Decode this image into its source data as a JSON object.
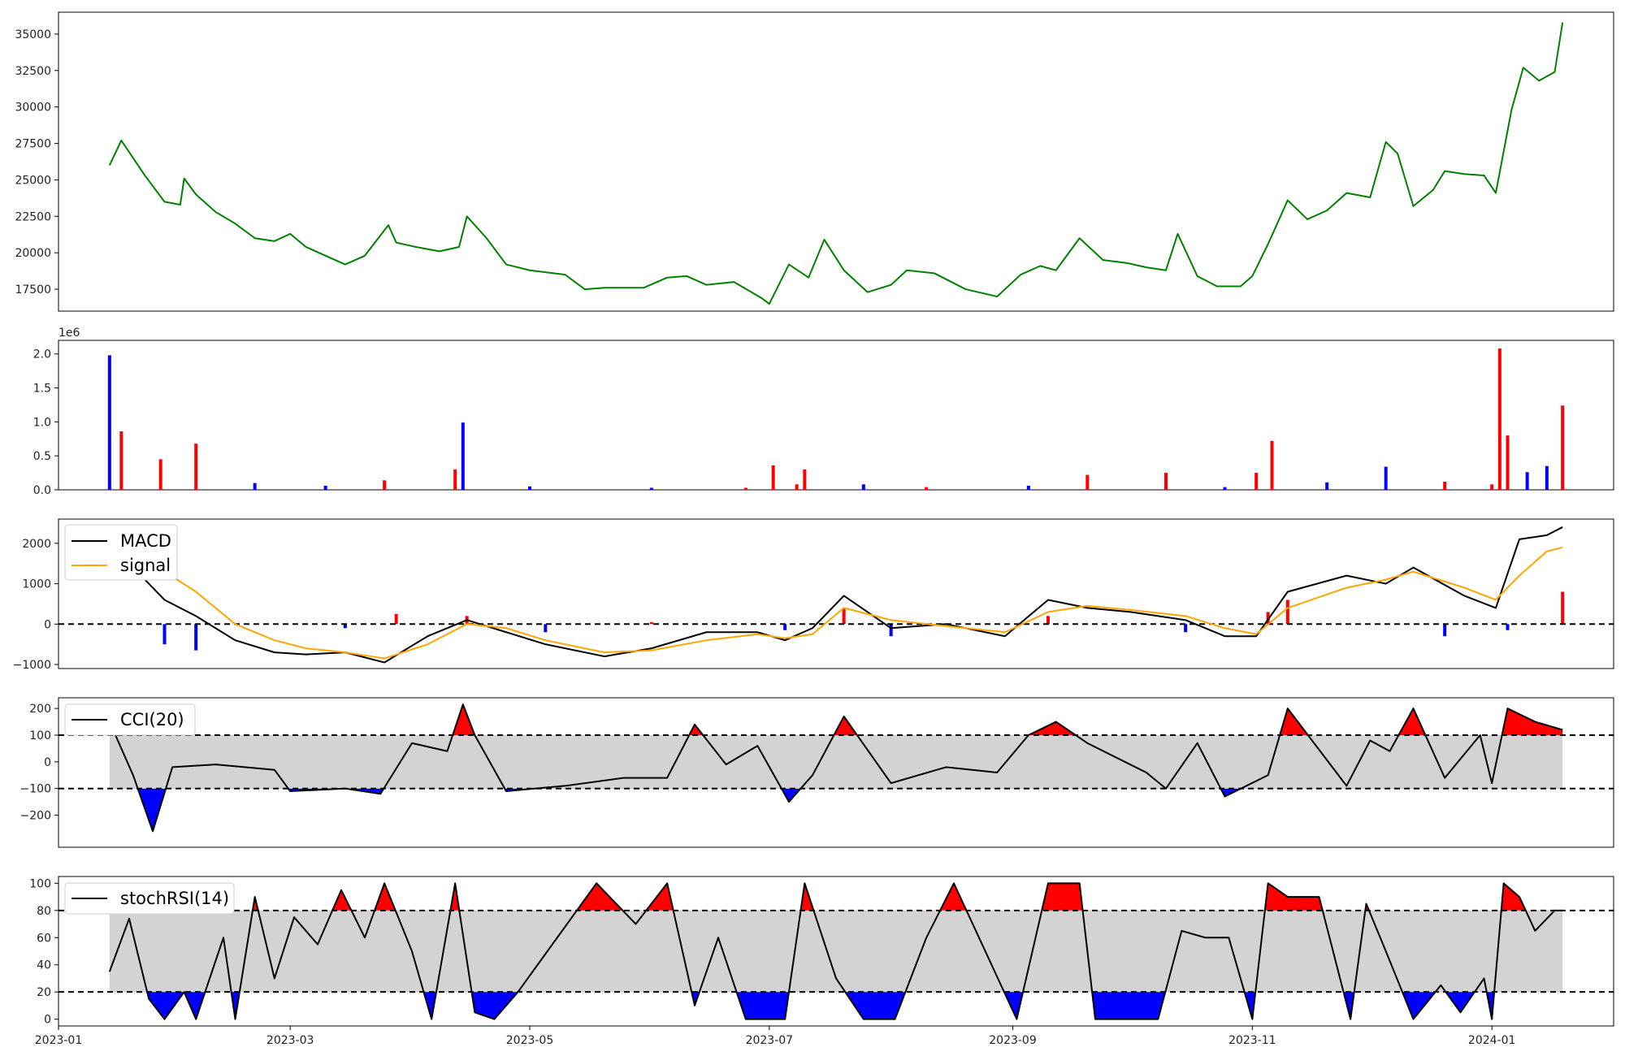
{
  "chart_data": [
    {
      "type": "line",
      "panel": "price",
      "x": [
        "2023-01-14",
        "2023-01-17",
        "2023-01-23",
        "2023-01-28",
        "2023-02-01",
        "2023-02-02",
        "2023-02-05",
        "2023-02-10",
        "2023-02-15",
        "2023-02-20",
        "2023-02-25",
        "2023-03-01",
        "2023-03-05",
        "2023-03-10",
        "2023-03-15",
        "2023-03-20",
        "2023-03-26",
        "2023-03-28",
        "2023-04-02",
        "2023-04-08",
        "2023-04-13",
        "2023-04-15",
        "2023-04-20",
        "2023-04-25",
        "2023-05-01",
        "2023-05-10",
        "2023-05-15",
        "2023-05-20",
        "2023-05-30",
        "2023-06-05",
        "2023-06-10",
        "2023-06-15",
        "2023-06-22",
        "2023-06-29",
        "2023-07-01",
        "2023-07-06",
        "2023-07-11",
        "2023-07-15",
        "2023-07-20",
        "2023-07-26",
        "2023-08-01",
        "2023-08-05",
        "2023-08-12",
        "2023-08-20",
        "2023-08-28",
        "2023-09-03",
        "2023-09-08",
        "2023-09-12",
        "2023-09-18",
        "2023-09-24",
        "2023-09-30",
        "2023-10-05",
        "2023-10-10",
        "2023-10-13",
        "2023-10-18",
        "2023-10-23",
        "2023-10-29",
        "2023-11-01",
        "2023-11-05",
        "2023-11-10",
        "2023-11-15",
        "2023-11-20",
        "2023-11-25",
        "2023-12-01",
        "2023-12-05",
        "2023-12-08",
        "2023-12-12",
        "2023-12-17",
        "2023-12-20",
        "2023-12-25",
        "2023-12-30",
        "2024-01-02",
        "2024-01-06",
        "2024-01-09",
        "2024-01-13",
        "2024-01-17",
        "2024-01-19"
      ],
      "values": [
        26000,
        27700,
        25300,
        23500,
        23300,
        25100,
        24000,
        22800,
        22000,
        21000,
        20800,
        21300,
        20400,
        19800,
        19200,
        19800,
        21900,
        20700,
        20400,
        20100,
        20400,
        22500,
        21000,
        19200,
        18800,
        18500,
        17500,
        17600,
        17600,
        18300,
        18400,
        17800,
        18000,
        16900,
        16500,
        19200,
        18300,
        20900,
        18800,
        17300,
        17800,
        18800,
        18600,
        17500,
        17000,
        18500,
        19100,
        18800,
        21000,
        19500,
        19300,
        19000,
        18800,
        21300,
        18400,
        17700,
        17700,
        18400,
        20600,
        23600,
        22300,
        22900,
        24100,
        23800,
        27600,
        26800,
        23200,
        24300,
        25600,
        25400,
        25300,
        24100,
        29800,
        32700,
        31800,
        32400,
        35800
      ],
      "color": "#008000",
      "ylim": [
        16000,
        36500
      ],
      "yticks": [
        "17500",
        "20000",
        "22500",
        "25000",
        "27500",
        "30000",
        "32500",
        "35000"
      ]
    },
    {
      "type": "bar",
      "panel": "volume",
      "offset_label": "1e6",
      "x": [
        "2023-01-14",
        "2023-01-17",
        "2023-01-27",
        "2023-02-05",
        "2023-02-20",
        "2023-03-10",
        "2023-03-25",
        "2023-04-12",
        "2023-04-14",
        "2023-05-01",
        "2023-06-01",
        "2023-06-25",
        "2023-07-02",
        "2023-07-08",
        "2023-07-10",
        "2023-07-25",
        "2023-08-10",
        "2023-09-05",
        "2023-09-20",
        "2023-10-10",
        "2023-10-25",
        "2023-11-02",
        "2023-11-06",
        "2023-11-20",
        "2023-12-05",
        "2023-12-20",
        "2024-01-01",
        "2024-01-03",
        "2024-01-05",
        "2024-01-10",
        "2024-01-15",
        "2024-01-19"
      ],
      "values": [
        1980000,
        860000,
        450000,
        680000,
        100000,
        60000,
        140000,
        300000,
        990000,
        50000,
        30000,
        30000,
        360000,
        80000,
        300000,
        80000,
        40000,
        60000,
        220000,
        250000,
        40000,
        250000,
        720000,
        110000,
        340000,
        120000,
        80000,
        2080000,
        800000,
        260000,
        350000,
        1240000
      ],
      "colors": [
        "#0000ff",
        "#ff0000",
        "#ff0000",
        "#ff0000",
        "#0000ff",
        "#0000ff",
        "#ff0000",
        "#ff0000",
        "#0000ff",
        "#0000ff",
        "#0000ff",
        "#ff0000",
        "#ff0000",
        "#ff0000",
        "#ff0000",
        "#0000ff",
        "#ff0000",
        "#0000ff",
        "#ff0000",
        "#ff0000",
        "#0000ff",
        "#ff0000",
        "#ff0000",
        "#0000ff",
        "#0000ff",
        "#ff0000",
        "#ff0000",
        "#ff0000",
        "#ff0000",
        "#0000ff",
        "#0000ff",
        "#ff0000"
      ],
      "ylim": [
        0,
        2200000
      ],
      "yticks": [
        "0.0",
        "0.5",
        "1.0",
        "1.5",
        "2.0"
      ]
    },
    {
      "type": "line",
      "panel": "macd",
      "series": [
        {
          "name": "MACD",
          "color": "#000000",
          "x": [
            "2023-01-14",
            "2023-01-28",
            "2023-02-05",
            "2023-02-15",
            "2023-02-25",
            "2023-03-05",
            "2023-03-15",
            "2023-03-25",
            "2023-04-05",
            "2023-04-15",
            "2023-04-25",
            "2023-05-05",
            "2023-05-20",
            "2023-06-01",
            "2023-06-15",
            "2023-06-28",
            "2023-07-05",
            "2023-07-12",
            "2023-07-20",
            "2023-08-01",
            "2023-08-15",
            "2023-08-30",
            "2023-09-10",
            "2023-09-20",
            "2023-10-01",
            "2023-10-15",
            "2023-10-25",
            "2023-11-02",
            "2023-11-10",
            "2023-11-25",
            "2023-12-05",
            "2023-12-12",
            "2023-12-25",
            "2024-01-02",
            "2024-01-08",
            "2024-01-15",
            "2024-01-19"
          ],
          "values": [
            2000,
            600,
            200,
            -400,
            -700,
            -750,
            -700,
            -950,
            -300,
            100,
            -200,
            -500,
            -800,
            -600,
            -200,
            -200,
            -400,
            -100,
            700,
            -100,
            0,
            -300,
            600,
            400,
            300,
            100,
            -300,
            -300,
            800,
            1200,
            1000,
            1400,
            700,
            400,
            2100,
            2200,
            2400
          ]
        },
        {
          "name": "signal",
          "color": "#ffa500",
          "x": [
            "2023-01-14",
            "2023-01-28",
            "2023-02-05",
            "2023-02-15",
            "2023-02-25",
            "2023-03-05",
            "2023-03-15",
            "2023-03-25",
            "2023-04-05",
            "2023-04-15",
            "2023-04-25",
            "2023-05-05",
            "2023-05-20",
            "2023-06-01",
            "2023-06-15",
            "2023-06-28",
            "2023-07-05",
            "2023-07-12",
            "2023-07-20",
            "2023-08-01",
            "2023-08-15",
            "2023-08-30",
            "2023-09-10",
            "2023-09-20",
            "2023-10-01",
            "2023-10-15",
            "2023-10-25",
            "2023-11-02",
            "2023-11-10",
            "2023-11-25",
            "2023-12-05",
            "2023-12-12",
            "2023-12-25",
            "2024-01-02",
            "2024-01-08",
            "2024-01-15",
            "2024-01-19"
          ],
          "values": [
            1900,
            1300,
            800,
            0,
            -400,
            -600,
            -700,
            -850,
            -500,
            0,
            -100,
            -400,
            -700,
            -650,
            -400,
            -250,
            -350,
            -250,
            400,
            100,
            -50,
            -200,
            300,
            450,
            350,
            200,
            -100,
            -250,
            400,
            900,
            1100,
            1300,
            900,
            600,
            1200,
            1800,
            1900
          ]
        }
      ],
      "hist_x": [
        "2023-01-28",
        "2023-02-05",
        "2023-03-15",
        "2023-03-28",
        "2023-04-15",
        "2023-05-05",
        "2023-06-01",
        "2023-07-05",
        "2023-07-20",
        "2023-08-01",
        "2023-09-10",
        "2023-10-15",
        "2023-11-05",
        "2023-11-10",
        "2023-12-20",
        "2024-01-05",
        "2024-01-19"
      ],
      "hist_values": [
        -500,
        -650,
        -100,
        250,
        200,
        -200,
        50,
        -150,
        400,
        -300,
        200,
        -200,
        300,
        600,
        -300,
        -150,
        800
      ],
      "ylim": [
        -1100,
        2600
      ],
      "yticks": [
        "−1000",
        "0",
        "1000",
        "2000"
      ]
    },
    {
      "type": "line",
      "panel": "cci",
      "series": [
        {
          "name": "CCI(20)",
          "color": "#000000"
        }
      ],
      "x": [
        "2023-01-14",
        "2023-01-20",
        "2023-01-25",
        "2023-01-30",
        "2023-02-10",
        "2023-02-25",
        "2023-03-01",
        "2023-03-15",
        "2023-03-24",
        "2023-04-01",
        "2023-04-10",
        "2023-04-14",
        "2023-04-17",
        "2023-04-25",
        "2023-05-10",
        "2023-05-25",
        "2023-06-05",
        "2023-06-12",
        "2023-06-20",
        "2023-06-28",
        "2023-07-06",
        "2023-07-12",
        "2023-07-20",
        "2023-08-01",
        "2023-08-15",
        "2023-08-28",
        "2023-09-05",
        "2023-09-12",
        "2023-09-20",
        "2023-10-05",
        "2023-10-10",
        "2023-10-18",
        "2023-10-25",
        "2023-11-05",
        "2023-11-10",
        "2023-11-25",
        "2023-12-01",
        "2023-12-06",
        "2023-12-12",
        "2023-12-20",
        "2023-12-29",
        "2024-01-01",
        "2024-01-05",
        "2024-01-12",
        "2024-01-19"
      ],
      "values": [
        150,
        -50,
        -260,
        -20,
        -10,
        -30,
        -110,
        -100,
        -120,
        70,
        40,
        215,
        100,
        -110,
        -90,
        -60,
        -60,
        140,
        -10,
        60,
        -150,
        -50,
        170,
        -80,
        -20,
        -40,
        100,
        150,
        70,
        -40,
        -100,
        70,
        -130,
        -50,
        200,
        -90,
        80,
        40,
        200,
        -60,
        100,
        -80,
        200,
        150,
        120
      ],
      "ylim": [
        -320,
        240
      ],
      "yticks": [
        "−200",
        "−100",
        "0",
        "100",
        "200"
      ],
      "upper": 100,
      "lower": -100
    },
    {
      "type": "line",
      "panel": "stochrsi",
      "series": [
        {
          "name": "stochRSI(14)",
          "color": "#000000"
        }
      ],
      "x": [
        "2023-01-14",
        "2023-01-19",
        "2023-01-24",
        "2023-01-28",
        "2023-02-02",
        "2023-02-05",
        "2023-02-12",
        "2023-02-15",
        "2023-02-20",
        "2023-02-25",
        "2023-03-02",
        "2023-03-08",
        "2023-03-14",
        "2023-03-20",
        "2023-03-25",
        "2023-04-01",
        "2023-04-06",
        "2023-04-12",
        "2023-04-17",
        "2023-04-22",
        "2023-04-28",
        "2023-05-08",
        "2023-05-18",
        "2023-05-28",
        "2023-06-05",
        "2023-06-12",
        "2023-06-18",
        "2023-06-25",
        "2023-07-05",
        "2023-07-10",
        "2023-07-18",
        "2023-07-25",
        "2023-08-02",
        "2023-08-10",
        "2023-08-17",
        "2023-08-25",
        "2023-09-02",
        "2023-09-10",
        "2023-09-18",
        "2023-09-22",
        "2023-10-01",
        "2023-10-08",
        "2023-10-14",
        "2023-10-20",
        "2023-10-26",
        "2023-11-01",
        "2023-11-05",
        "2023-11-10",
        "2023-11-18",
        "2023-11-26",
        "2023-11-30",
        "2023-12-05",
        "2023-12-12",
        "2023-12-19",
        "2023-12-24",
        "2023-12-30",
        "2024-01-01",
        "2024-01-04",
        "2024-01-08",
        "2024-01-12",
        "2024-01-17",
        "2024-01-19"
      ],
      "values": [
        35,
        74,
        15,
        0,
        20,
        0,
        60,
        0,
        90,
        30,
        75,
        55,
        95,
        60,
        100,
        50,
        0,
        100,
        5,
        0,
        20,
        60,
        100,
        70,
        100,
        10,
        60,
        0,
        0,
        100,
        30,
        0,
        0,
        60,
        100,
        50,
        0,
        100,
        100,
        0,
        0,
        0,
        65,
        60,
        60,
        0,
        100,
        90,
        90,
        0,
        85,
        50,
        0,
        25,
        5,
        30,
        0,
        100,
        90,
        65,
        80,
        80
      ],
      "ylim": [
        -5,
        105
      ],
      "yticks": [
        "0",
        "20",
        "40",
        "60",
        "80",
        "100"
      ],
      "upper": 80,
      "lower": 20
    }
  ],
  "x_axis": {
    "start": "2023-01-01",
    "end": "2024-02-01",
    "tick_labels": [
      "2023-01",
      "2023-03",
      "2023-05",
      "2023-07",
      "2023-09",
      "2023-11",
      "2024-01"
    ]
  },
  "colors": {
    "up": "#ff0000",
    "down": "#0000ff",
    "band": "#d3d3d3",
    "price": "#008000",
    "signal": "#ffa500"
  },
  "legends": {
    "macd": [
      "MACD",
      "signal"
    ],
    "cci": [
      "CCI(20)"
    ],
    "stochrsi": [
      "stochRSI(14)"
    ]
  }
}
